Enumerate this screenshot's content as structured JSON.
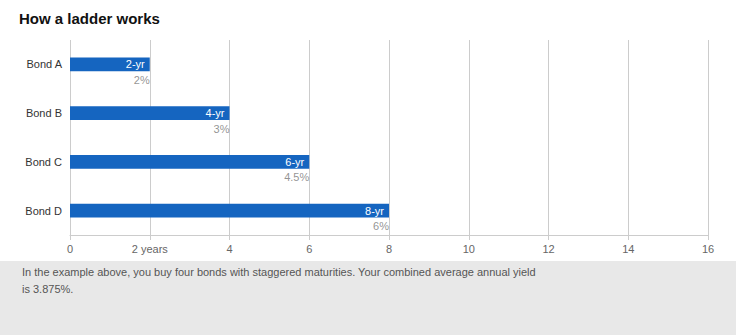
{
  "chart_data": {
    "type": "bar",
    "orientation": "horizontal",
    "title": "How a ladder works",
    "categories": [
      "Bond A",
      "Bond B",
      "Bond C",
      "Bond D"
    ],
    "values": [
      2,
      4,
      6,
      8
    ],
    "data_labels": true,
    "value_labels": [
      "2-yr",
      "4-yr",
      "6-yr",
      "8-yr"
    ],
    "annotations": [
      {
        "text": "2%",
        "category": "Bond A"
      },
      {
        "text": "3%",
        "category": "Bond B"
      },
      {
        "text": "4.5%",
        "category": "Bond C"
      },
      {
        "text": "6%",
        "category": "Bond D"
      }
    ],
    "color": "#1565C0",
    "xlim": [
      0,
      16
    ],
    "xticks": [
      0,
      {
        "value": 2,
        "label": "2 years"
      },
      4,
      6,
      8,
      10,
      12,
      14,
      16
    ],
    "grid": true,
    "footnote": [
      "In the example above, you buy four bonds with staggered maturities. Your combined average annual yield",
      "is 3.875%."
    ]
  }
}
